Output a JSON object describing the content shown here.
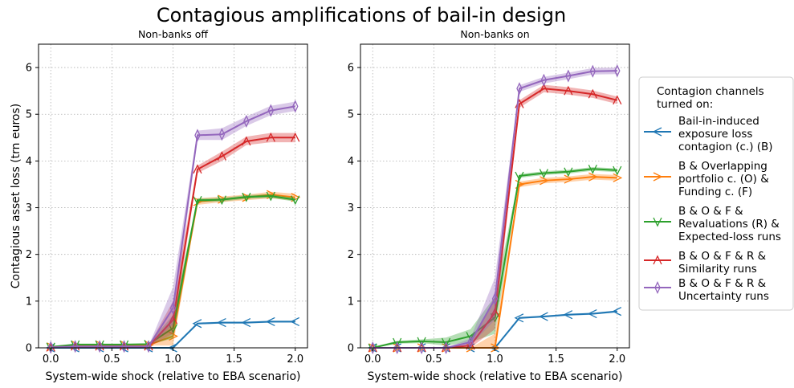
{
  "figure": {
    "title": "Contagious amplifications of bail-in design"
  },
  "legend": {
    "title_lines": [
      "Contagion channels",
      "turned on:"
    ],
    "placement": "right, outside plots",
    "entries": [
      {
        "series_index": 0,
        "lines": [
          "Bail-in-induced",
          "exposure loss",
          "contagion (c.) (B)"
        ]
      },
      {
        "series_index": 1,
        "lines": [
          "B & Overlapping",
          "portfolio c. (O) &",
          "Funding c. (F)"
        ]
      },
      {
        "series_index": 2,
        "lines": [
          "B & O & F &",
          "Revaluations (R) &",
          "Expected-loss runs"
        ]
      },
      {
        "series_index": 3,
        "lines": [
          "B & O & F & R &",
          "Similarity runs"
        ]
      },
      {
        "series_index": 4,
        "lines": [
          "B & O & F & R &",
          "Uncertainty runs"
        ]
      }
    ]
  },
  "chart_data": [
    {
      "type": "line",
      "title": "Non-banks off",
      "xlabel": "System-wide shock (relative to EBA scenario)",
      "ylabel": "Contagious asset loss (trn euros)",
      "xlim": [
        -0.1,
        2.1
      ],
      "ylim": [
        0,
        6.5
      ],
      "xticks": [
        "0.0",
        "0.5",
        "1.0",
        "1.5",
        "2.0"
      ],
      "yticks": [
        "0",
        "1",
        "2",
        "3",
        "4",
        "5",
        "6"
      ],
      "grid": true,
      "x": [
        0.0,
        0.2,
        0.4,
        0.6,
        0.8,
        1.0,
        1.2,
        1.4,
        1.6,
        1.8,
        2.0
      ],
      "series": [
        {
          "name": "Bail-in-induced exposure loss contagion (c.) (B)",
          "color": "#1f77b4",
          "marker": "tri_left",
          "values": [
            0,
            0,
            0,
            0,
            0,
            0,
            0.52,
            0.54,
            0.54,
            0.56,
            0.56
          ],
          "band": [
            [
              0,
              0
            ],
            [
              0,
              0
            ],
            [
              0,
              0
            ],
            [
              0,
              0
            ],
            [
              0,
              0
            ],
            [
              0,
              0
            ],
            [
              0.5,
              0.54
            ],
            [
              0.52,
              0.56
            ],
            [
              0.52,
              0.56
            ],
            [
              0.54,
              0.58
            ],
            [
              0.54,
              0.58
            ]
          ]
        },
        {
          "name": "B & Overlapping portfolio c. (O) & Funding c. (F)",
          "color": "#ff7f0e",
          "marker": "tri_right",
          "values": [
            0.02,
            0.06,
            0.06,
            0.06,
            0.06,
            0.25,
            3.13,
            3.18,
            3.22,
            3.28,
            3.22
          ],
          "band": [
            [
              0.01,
              0.03
            ],
            [
              0.05,
              0.07
            ],
            [
              0.05,
              0.07
            ],
            [
              0.05,
              0.07
            ],
            [
              0.05,
              0.07
            ],
            [
              0.05,
              0.6
            ],
            [
              3.06,
              3.2
            ],
            [
              3.12,
              3.24
            ],
            [
              3.16,
              3.28
            ],
            [
              3.2,
              3.34
            ],
            [
              3.15,
              3.3
            ]
          ]
        },
        {
          "name": "B & O & F & Revaluations (R) & Expected-loss runs",
          "color": "#2ca02c",
          "marker": "tri_down",
          "values": [
            0.02,
            0.07,
            0.07,
            0.07,
            0.08,
            0.42,
            3.16,
            3.17,
            3.23,
            3.25,
            3.17
          ],
          "band": [
            [
              0.01,
              0.03
            ],
            [
              0.06,
              0.08
            ],
            [
              0.06,
              0.08
            ],
            [
              0.06,
              0.08
            ],
            [
              0.07,
              0.09
            ],
            [
              0.2,
              0.7
            ],
            [
              3.12,
              3.2
            ],
            [
              3.13,
              3.21
            ],
            [
              3.19,
              3.27
            ],
            [
              3.21,
              3.29
            ],
            [
              3.13,
              3.21
            ]
          ]
        },
        {
          "name": "B & O & F & R & Similarity runs",
          "color": "#d62728",
          "marker": "tri_up",
          "values": [
            0.01,
            0.03,
            0.03,
            0.03,
            0.03,
            0.6,
            3.82,
            4.1,
            4.42,
            4.5,
            4.5
          ],
          "band": [
            [
              0,
              0.02
            ],
            [
              0.02,
              0.04
            ],
            [
              0.02,
              0.04
            ],
            [
              0.02,
              0.04
            ],
            [
              0.02,
              0.04
            ],
            [
              0.3,
              1.0
            ],
            [
              3.74,
              3.9
            ],
            [
              4.0,
              4.2
            ],
            [
              4.34,
              4.52
            ],
            [
              4.4,
              4.6
            ],
            [
              4.4,
              4.6
            ]
          ]
        },
        {
          "name": "B & O & F & R & Uncertainty runs",
          "color": "#9467bd",
          "marker": "thin_diamond",
          "values": [
            0.01,
            0.03,
            0.03,
            0.03,
            0.03,
            0.85,
            4.55,
            4.57,
            4.85,
            5.08,
            5.17
          ],
          "band": [
            [
              0,
              0.02
            ],
            [
              0.02,
              0.04
            ],
            [
              0.02,
              0.04
            ],
            [
              0.02,
              0.04
            ],
            [
              0.02,
              0.04
            ],
            [
              0.5,
              1.3
            ],
            [
              4.45,
              4.65
            ],
            [
              4.45,
              4.7
            ],
            [
              4.75,
              4.95
            ],
            [
              4.98,
              5.18
            ],
            [
              5.07,
              5.27
            ]
          ]
        }
      ]
    },
    {
      "type": "line",
      "title": "Non-banks on",
      "xlabel": "System-wide shock (relative to EBA scenario)",
      "ylabel": "",
      "xlim": [
        -0.1,
        2.1
      ],
      "ylim": [
        0,
        6.5
      ],
      "xticks": [
        "0.0",
        "0.5",
        "1.0",
        "1.5",
        "2.0"
      ],
      "yticks": [
        "0",
        "1",
        "2",
        "3",
        "4",
        "5",
        "6"
      ],
      "grid": true,
      "x": [
        0.0,
        0.2,
        0.4,
        0.6,
        0.8,
        1.0,
        1.2,
        1.4,
        1.6,
        1.8,
        2.0
      ],
      "series": [
        {
          "name": "Bail-in-induced exposure loss contagion (c.) (B)",
          "color": "#1f77b4",
          "marker": "tri_left",
          "values": [
            0,
            0,
            0,
            0,
            0,
            0,
            0.64,
            0.67,
            0.71,
            0.73,
            0.78
          ],
          "band": [
            [
              0,
              0
            ],
            [
              0,
              0
            ],
            [
              0,
              0
            ],
            [
              0,
              0
            ],
            [
              0,
              0
            ],
            [
              0,
              0
            ],
            [
              0.62,
              0.66
            ],
            [
              0.65,
              0.69
            ],
            [
              0.69,
              0.73
            ],
            [
              0.71,
              0.75
            ],
            [
              0.76,
              0.8
            ]
          ]
        },
        {
          "name": "B & Overlapping portfolio c. (O) & Funding c. (F)",
          "color": "#ff7f0e",
          "marker": "tri_right",
          "values": [
            0,
            0,
            0,
            0,
            0,
            0,
            3.5,
            3.58,
            3.61,
            3.66,
            3.64
          ],
          "band": [
            [
              0,
              0
            ],
            [
              0,
              0
            ],
            [
              0,
              0
            ],
            [
              0,
              0
            ],
            [
              0,
              0
            ],
            [
              0,
              0.3
            ],
            [
              3.44,
              3.56
            ],
            [
              3.52,
              3.64
            ],
            [
              3.55,
              3.67
            ],
            [
              3.6,
              3.72
            ],
            [
              3.58,
              3.7
            ]
          ]
        },
        {
          "name": "B & O & F & Revaluations (R) & Expected-loss runs",
          "color": "#2ca02c",
          "marker": "tri_down",
          "values": [
            0,
            0.12,
            0.14,
            0.12,
            0.25,
            0.65,
            3.68,
            3.74,
            3.77,
            3.83,
            3.8
          ],
          "band": [
            [
              0,
              0.02
            ],
            [
              0.09,
              0.15
            ],
            [
              0.1,
              0.18
            ],
            [
              0.05,
              0.22
            ],
            [
              0.12,
              0.4
            ],
            [
              0.3,
              1.1
            ],
            [
              3.64,
              3.72
            ],
            [
              3.7,
              3.78
            ],
            [
              3.73,
              3.81
            ],
            [
              3.79,
              3.87
            ],
            [
              3.76,
              3.84
            ]
          ]
        },
        {
          "name": "B & O & F & R & Similarity runs",
          "color": "#d62728",
          "marker": "tri_up",
          "values": [
            0,
            0,
            0,
            0,
            0.05,
            0.75,
            5.22,
            5.55,
            5.5,
            5.43,
            5.3
          ],
          "band": [
            [
              0,
              0
            ],
            [
              0,
              0
            ],
            [
              0,
              0
            ],
            [
              0,
              0
            ],
            [
              0,
              0.1
            ],
            [
              0.4,
              1.1
            ],
            [
              5.14,
              5.3
            ],
            [
              5.47,
              5.63
            ],
            [
              5.42,
              5.58
            ],
            [
              5.35,
              5.51
            ],
            [
              5.22,
              5.38
            ]
          ]
        },
        {
          "name": "B & O & F & R & Uncertainty runs",
          "color": "#9467bd",
          "marker": "thin_diamond",
          "values": [
            0,
            0,
            0,
            0,
            0.12,
            1.05,
            5.55,
            5.73,
            5.82,
            5.92,
            5.93
          ],
          "band": [
            [
              0,
              0
            ],
            [
              0,
              0
            ],
            [
              0,
              0
            ],
            [
              0,
              0
            ],
            [
              0.05,
              0.2
            ],
            [
              0.6,
              1.5
            ],
            [
              5.48,
              5.62
            ],
            [
              5.66,
              5.8
            ],
            [
              5.75,
              5.89
            ],
            [
              5.85,
              5.99
            ],
            [
              5.86,
              6.0
            ]
          ]
        }
      ]
    }
  ]
}
